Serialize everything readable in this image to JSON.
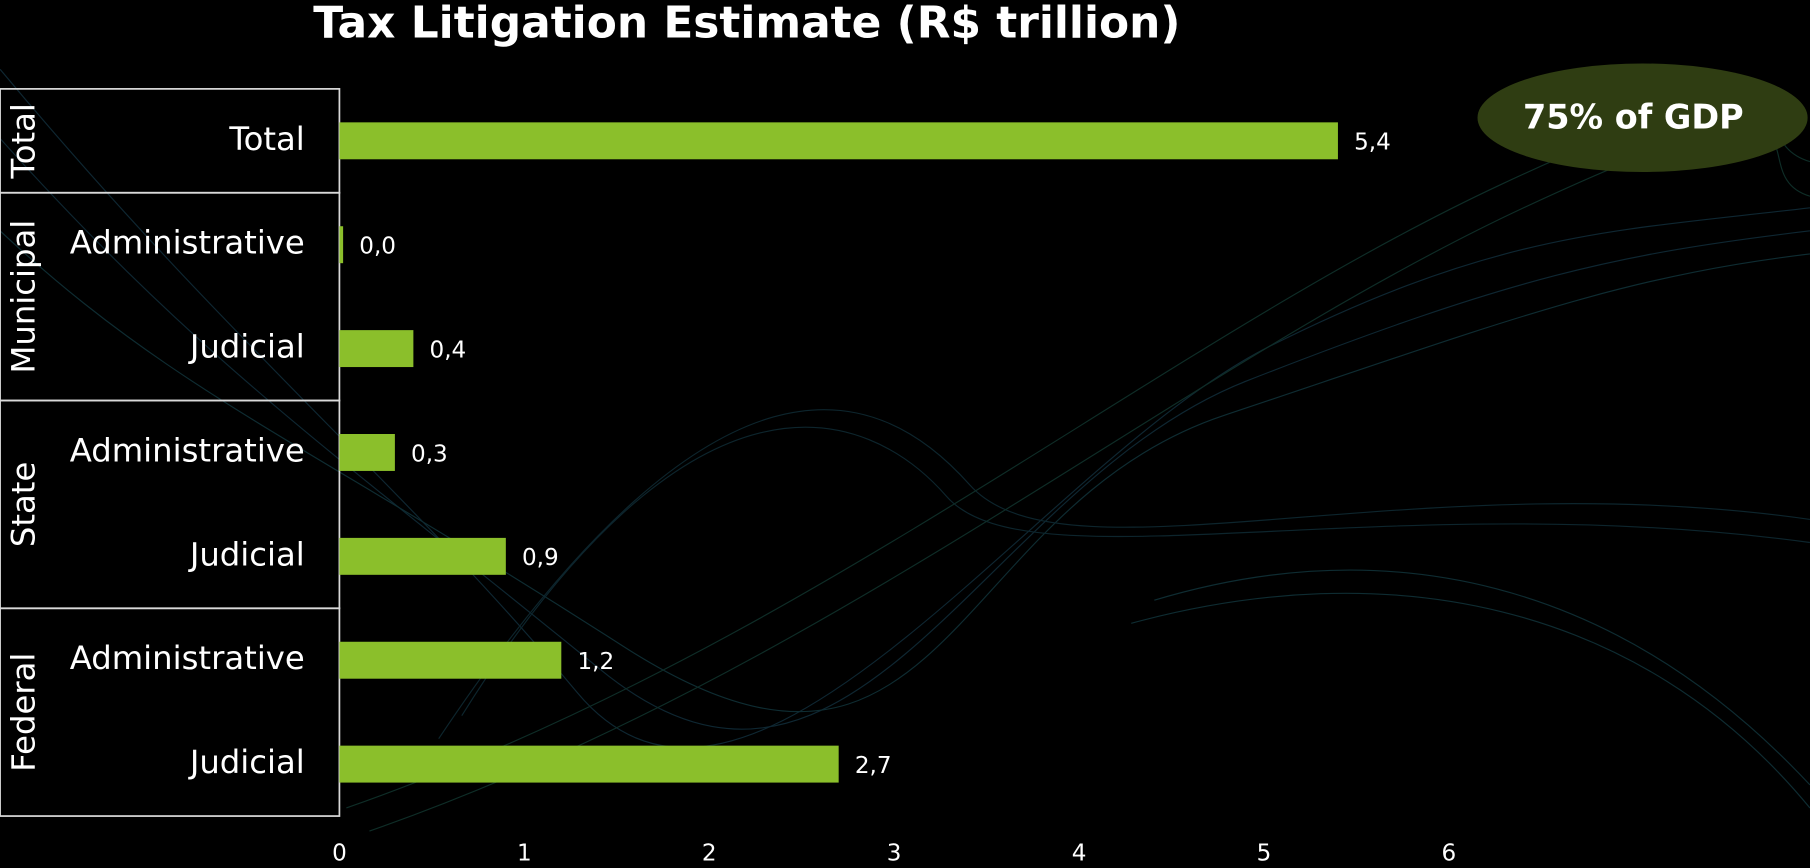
{
  "chart_data": {
    "type": "bar",
    "orientation": "horizontal",
    "title": "Tax Litigation Estimate (R$ trillion)",
    "annotation": "75% of GDP",
    "color": "#8bbf2b",
    "groups": [
      {
        "name": "Total",
        "categories": [
          "Total"
        ],
        "values": [
          5.4
        ],
        "value_labels": [
          "5,4"
        ]
      },
      {
        "name": "Municipal",
        "categories": [
          "Administrative",
          "Judicial"
        ],
        "values": [
          0.02,
          0.4
        ],
        "value_labels": [
          "0,0",
          "0,4"
        ]
      },
      {
        "name": "State",
        "categories": [
          "Administrative",
          "Judicial"
        ],
        "values": [
          0.3,
          0.9
        ],
        "value_labels": [
          "0,3",
          "0,9"
        ]
      },
      {
        "name": "Federal",
        "categories": [
          "Administrative",
          "Judicial"
        ],
        "values": [
          1.2,
          2.7
        ],
        "value_labels": [
          "1,2",
          "2,7"
        ]
      }
    ],
    "xlim": [
      0,
      7.8
    ],
    "xticks": [
      0,
      1,
      2,
      3,
      4,
      5,
      6
    ]
  }
}
